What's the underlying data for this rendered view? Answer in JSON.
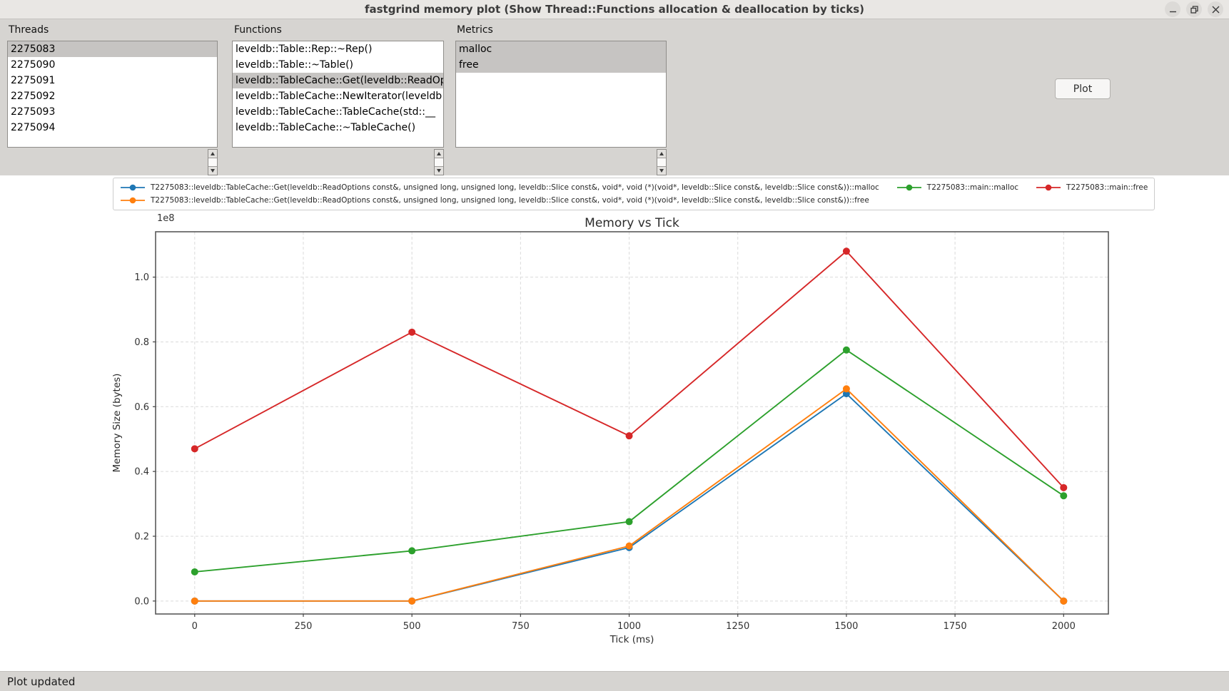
{
  "window": {
    "title": "fastgrind memory plot (Show Thread::Functions allocation & deallocation by ticks)",
    "buttons": [
      "minimize",
      "restore",
      "close"
    ]
  },
  "panel": {
    "threads": {
      "label": "Threads",
      "items": [
        "2275083",
        "2275090",
        "2275091",
        "2275092",
        "2275093",
        "2275094"
      ],
      "selected_indices": [
        0
      ]
    },
    "functions": {
      "label": "Functions",
      "items": [
        "leveldb::Table::Rep::~Rep()",
        "leveldb::Table::~Table()",
        "leveldb::TableCache::Get(leveldb::ReadOptions const&, unsigned long, unsigned long, leveldb::Slice const&, void*, void (*)(void*, leveldb::Slice const&, leveldb::Slice const&))",
        "leveldb::TableCache::NewIterator(leveldb",
        "leveldb::TableCache::TableCache(std::__",
        "leveldb::TableCache::~TableCache()"
      ],
      "selected_indices": [
        2
      ]
    },
    "metrics": {
      "label": "Metrics",
      "items": [
        "malloc",
        "free"
      ],
      "selected_indices": [
        0,
        1
      ]
    },
    "plot_button": "Plot"
  },
  "status_bar": {
    "text": "Plot updated"
  },
  "chart_data": {
    "type": "line",
    "title": "Memory vs Tick",
    "xlabel": "Tick (ms)",
    "ylabel": "Memory Size (bytes)",
    "offset_label": "1e8",
    "value_scale": "1e8",
    "grid": true,
    "legend_position": "top",
    "x": [
      0,
      500,
      1000,
      1500,
      2000
    ],
    "xticks": [
      0,
      250,
      500,
      750,
      1000,
      1250,
      1500,
      1750,
      2000
    ],
    "yticks": [
      0.0,
      0.2,
      0.4,
      0.6,
      0.8,
      1.0
    ],
    "xlim": [
      -90,
      2103
    ],
    "ylim": [
      -0.04,
      1.14
    ],
    "series": [
      {
        "name": "T2275083::leveldb::TableCache::Get(leveldb::ReadOptions const&, unsigned long, unsigned long, leveldb::Slice const&, void*, void (*)(void*, leveldb::Slice const&, leveldb::Slice const&))::malloc",
        "color": "#1f77b4",
        "values": [
          0.0,
          0.0,
          0.165,
          0.64,
          0.0
        ]
      },
      {
        "name": "T2275083::leveldb::TableCache::Get(leveldb::ReadOptions const&, unsigned long, unsigned long, leveldb::Slice const&, void*, void (*)(void*, leveldb::Slice const&, leveldb::Slice const&))::free",
        "color": "#ff7f0e",
        "values": [
          0.0,
          0.0,
          0.17,
          0.655,
          0.0
        ]
      },
      {
        "name": "T2275083::main::malloc",
        "color": "#2ca02c",
        "values": [
          0.09,
          0.155,
          0.245,
          0.775,
          0.325
        ]
      },
      {
        "name": "T2275083::main::free",
        "color": "#d62728",
        "values": [
          0.47,
          0.83,
          0.51,
          1.08,
          0.35
        ]
      }
    ],
    "legend_rows": [
      [
        0,
        2,
        3
      ],
      [
        1
      ]
    ]
  }
}
